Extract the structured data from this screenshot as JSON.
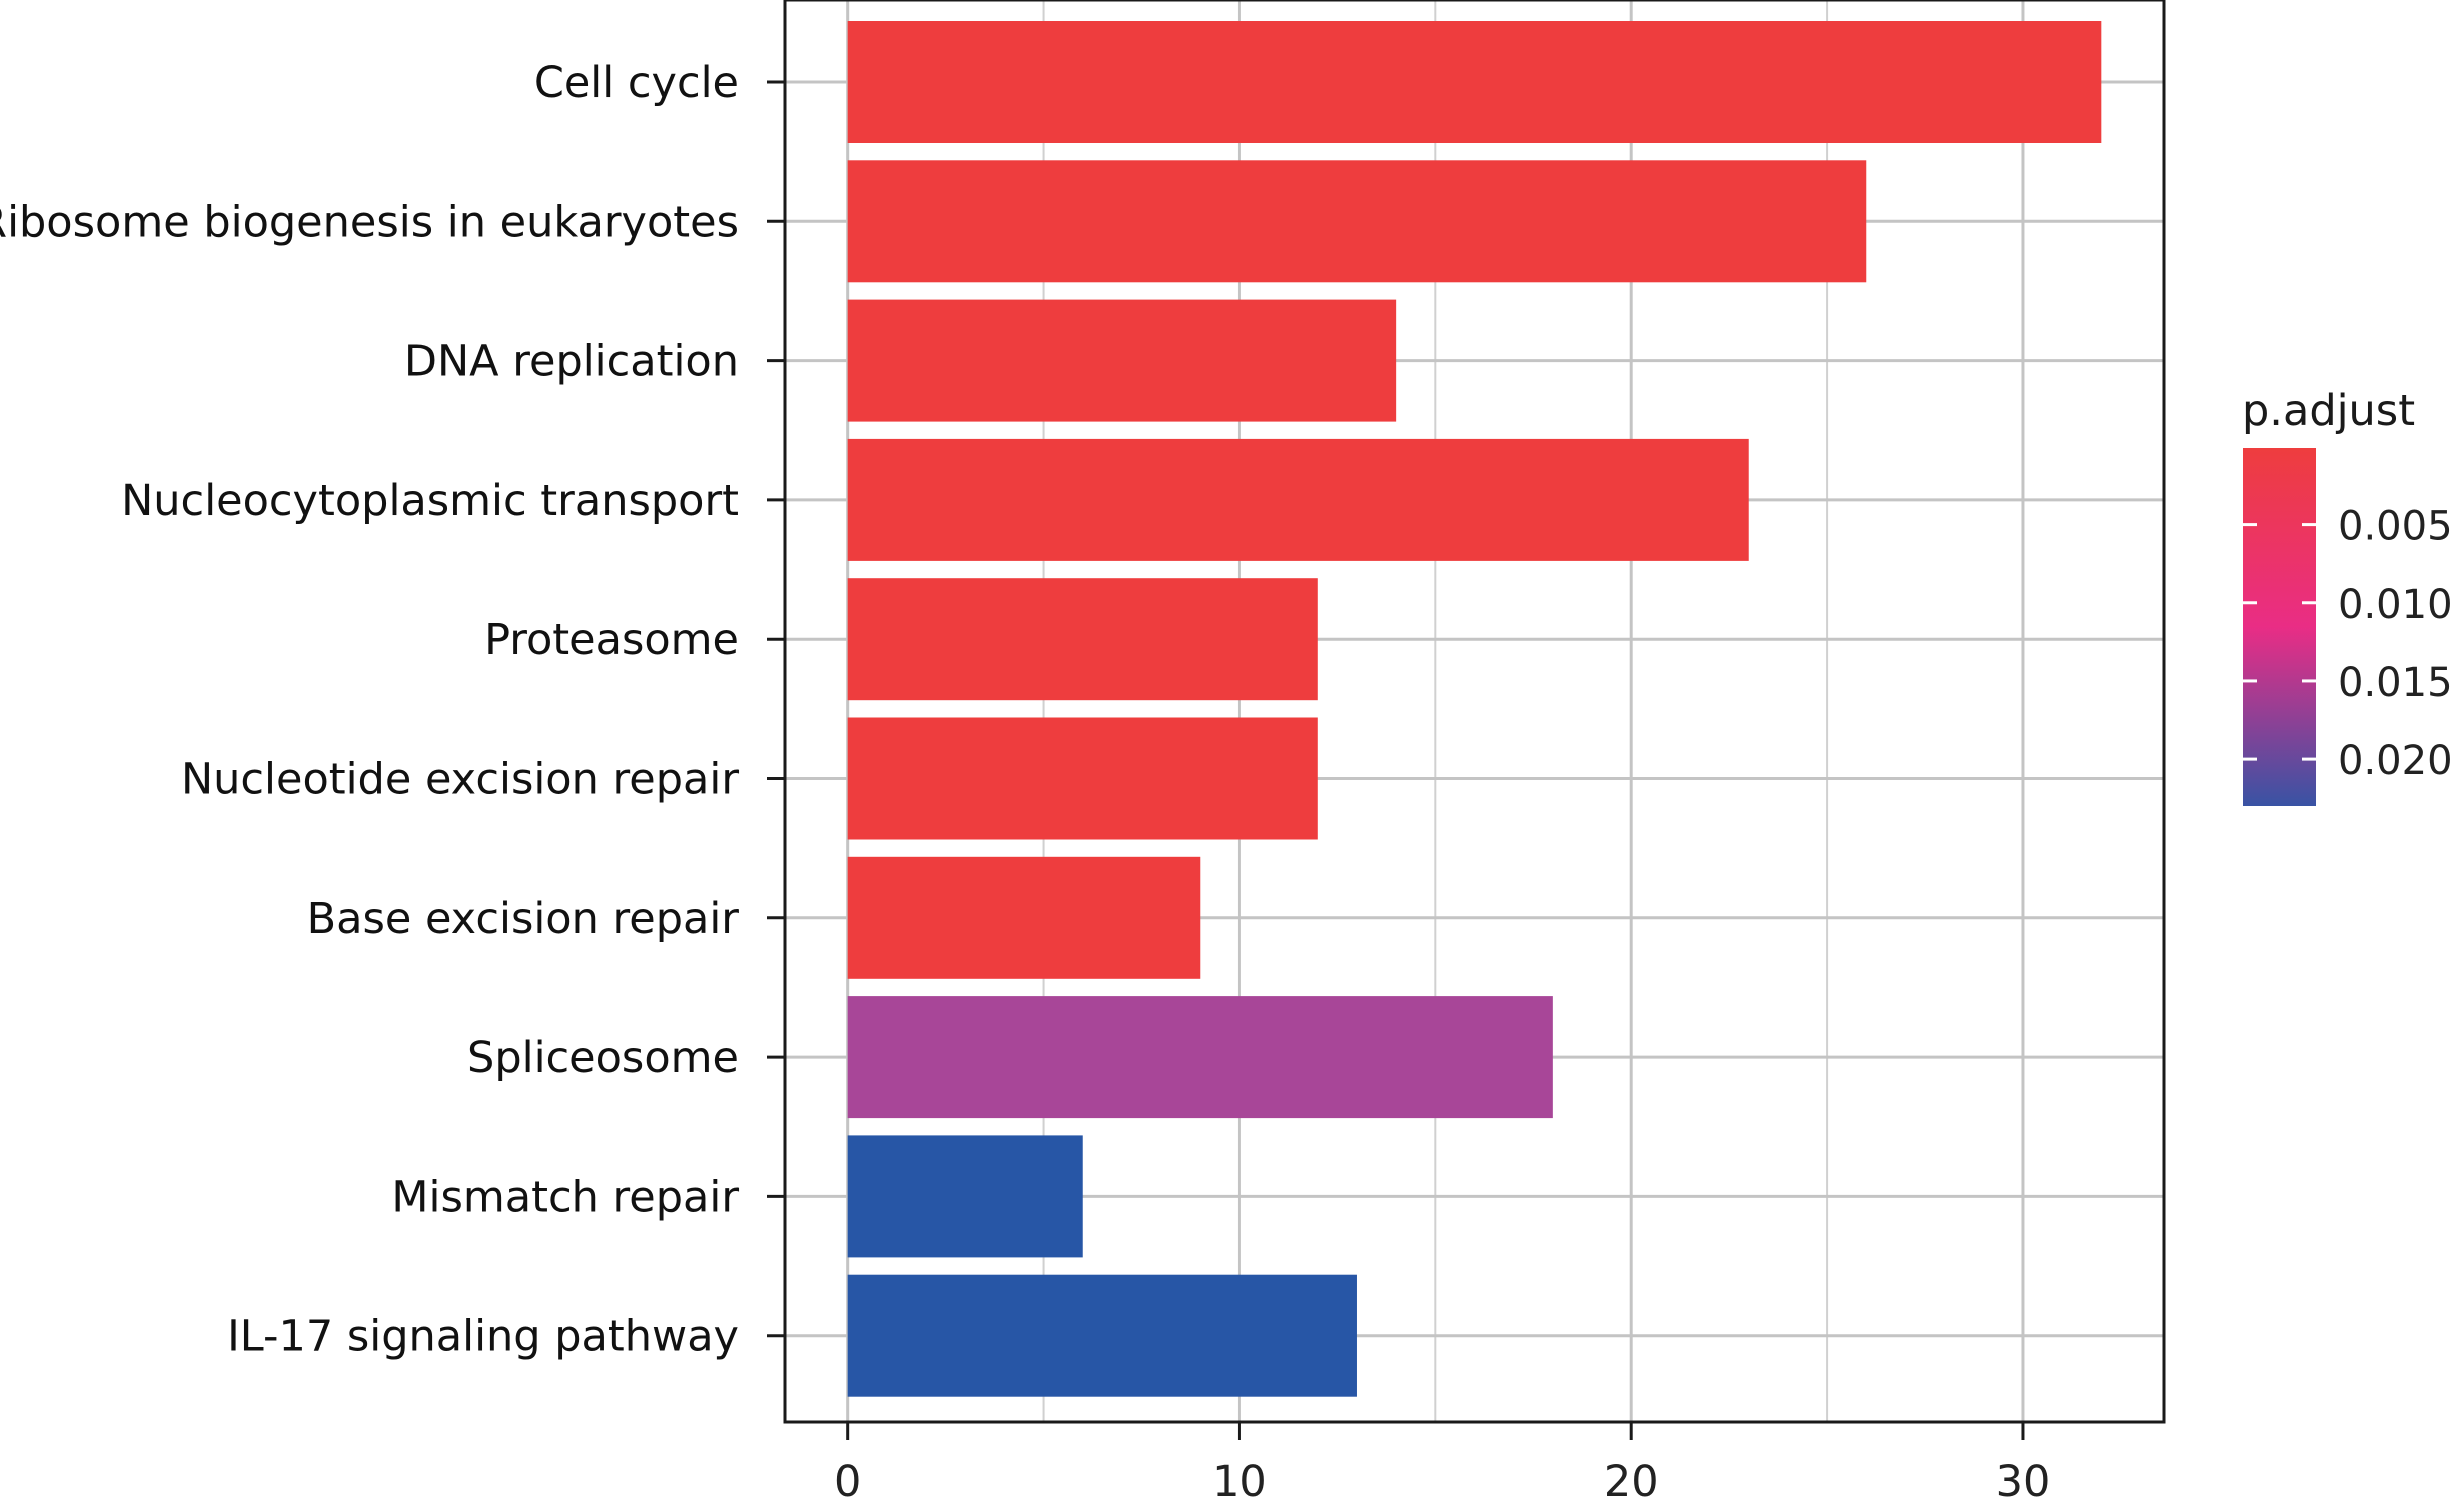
{
  "chart_data": {
    "type": "bar",
    "orientation": "horizontal",
    "title": "",
    "xlabel": "",
    "ylabel": "",
    "xlim": [
      -1.6,
      33.6
    ],
    "x_ticks": [
      0,
      10,
      20,
      30
    ],
    "x_tick_labels": [
      "0",
      "10",
      "20",
      "30"
    ],
    "grid": true,
    "categories": [
      "Cell cycle",
      "Ribosome biogenesis in eukaryotes",
      "DNA replication",
      "Nucleocytoplasmic transport",
      "Proteasome",
      "Nucleotide excision repair",
      "Base excision repair",
      "Spliceosome",
      "Mismatch repair",
      "IL-17 signaling pathway"
    ],
    "values": [
      32,
      26,
      14,
      23,
      12,
      12,
      9,
      18,
      6,
      13
    ],
    "p_adjust": [
      0.0001,
      0.0001,
      0.0001,
      0.0001,
      0.0002,
      0.0002,
      0.0003,
      0.014,
      0.023,
      0.023
    ],
    "bar_colors": [
      "#EE3D3E",
      "#EE3D3E",
      "#EE3D3E",
      "#EE3D3E",
      "#EE3D3E",
      "#EE3D3E",
      "#EE3D3E",
      "#A84698",
      "#2756A6",
      "#2756A6"
    ],
    "legend": {
      "title": "p.adjust",
      "placement": "right",
      "tick_labels": [
        "0.005",
        "0.010",
        "0.015",
        "0.020"
      ],
      "tick_values": [
        0.005,
        0.01,
        0.015,
        0.02
      ],
      "range": [
        0.0001,
        0.023
      ],
      "colors": {
        "low": "#EE3D3E",
        "mid": "#E92D85",
        "high": "#3953A4"
      }
    }
  }
}
